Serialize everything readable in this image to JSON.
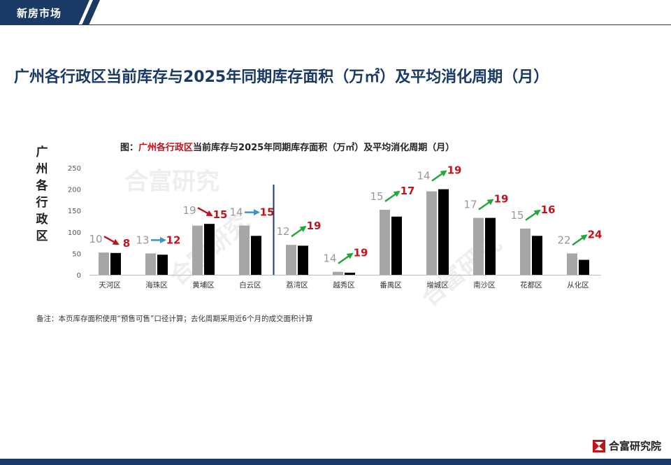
{
  "header": {
    "tab_label": "新房市场",
    "color": "#1a3a66"
  },
  "slide_title": "广州各行政区当前库存与2025年同期库存面积（万㎡）及平均消化周期（月）",
  "chart": {
    "title_prefix": "图：",
    "title_highlight": "广州各行政区",
    "title_rest": "当前库存与2025年同期库存面积（万㎡）及平均消化周期（月）",
    "ylabel": "广州各行政区",
    "watermark": "合富研究"
  },
  "chart_data": {
    "type": "bar",
    "categories": [
      "天河区",
      "海珠区",
      "黄埔区",
      "白云区",
      "荔湾区",
      "越秀区",
      "番禺区",
      "增城区",
      "南沙区",
      "花都区",
      "从化区"
    ],
    "series": [
      {
        "values": [
          52,
          50,
          115,
          115,
          70,
          7,
          152,
          195,
          133,
          108,
          50
        ],
        "color": "#a6a6a6"
      },
      {
        "values": [
          51,
          47,
          119,
          91,
          68,
          5,
          136,
          200,
          133,
          91,
          35
        ],
        "color": "#000000"
      }
    ],
    "cycle_prev": [
      10,
      13,
      19,
      14,
      12,
      14,
      15,
      14,
      17,
      15,
      22
    ],
    "cycle_curr": [
      8,
      12,
      15,
      15,
      19,
      19,
      17,
      19,
      19,
      16,
      24
    ],
    "trend": [
      "down",
      "flat",
      "down",
      "flat",
      "up",
      "up",
      "up",
      "up",
      "up",
      "up",
      "up"
    ],
    "trend_colors": {
      "down": "#c0141c",
      "flat": "#3a96c8",
      "up": "#22a83a"
    },
    "yticks": [
      0,
      50,
      100,
      150,
      200,
      250
    ],
    "ylim": [
      0,
      250
    ],
    "divider_after_index": 3,
    "grid": false
  },
  "note": "备注：本页库存面积使用“预售可售”口径计算；去化周期采用近6个月的成交面积计算",
  "brand": {
    "name": "合富研究院",
    "logo_color": "#c0141c"
  }
}
